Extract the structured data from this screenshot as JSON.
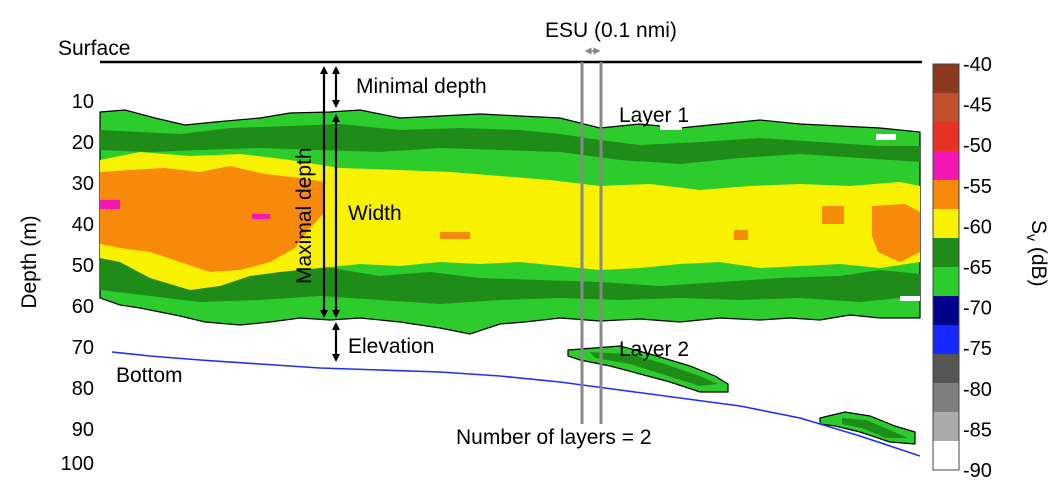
{
  "chart_data": {
    "type": "heatmap",
    "ylabel": "Depth (m)",
    "y_ticks": [
      "10",
      "20",
      "30",
      "40",
      "50",
      "60",
      "70",
      "80",
      "90",
      "100"
    ],
    "colorbar": {
      "label": "S",
      "label_sub": "v",
      "label_unit": " (dB)",
      "levels": [
        {
          "value": "-40",
          "color": "#8b3a1d"
        },
        {
          "value": "-45",
          "color": "#c0502f"
        },
        {
          "value": "-50",
          "color": "#e63224"
        },
        {
          "value": "-55",
          "color": "#f516b4"
        },
        {
          "value": "-60",
          "color": "#f78a0a"
        },
        {
          "value": "-65",
          "color": "#f8f200"
        },
        {
          "value": "-70",
          "color": "#1f8c1a"
        },
        {
          "value": "-75",
          "color": "#2dcc2d"
        },
        {
          "value": "-80",
          "color": "#00008b"
        },
        {
          "value": "-85",
          "color": "#1428ff"
        },
        {
          "value": "-90",
          "color": "#555555"
        },
        {
          "value": "",
          "color": "#7f7f7f"
        },
        {
          "value": "",
          "color": "#aaaaaa"
        },
        {
          "value": "",
          "color": "#ffffff"
        }
      ]
    },
    "annotations": {
      "surface": "Surface",
      "bottom": "Bottom",
      "esu": "ESU (0.1 nmi)",
      "minimal_depth": "Minimal depth",
      "maximal_depth": "Maximal depth",
      "width": "Width",
      "elevation": "Elevation",
      "layer1": "Layer 1",
      "layer2": "Layer 2",
      "num_layers": "Number of layers = 2"
    }
  }
}
